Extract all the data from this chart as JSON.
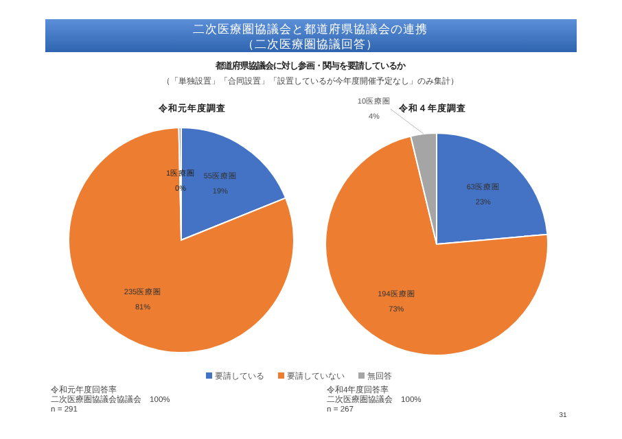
{
  "chart_data": [
    {
      "type": "pie",
      "title": "令和元年度調査",
      "categories": [
        null,
        null,
        null
      ],
      "values": [
        55,
        235,
        1
      ],
      "colors": [
        "#4472c4",
        "#ed7d31",
        "#a5a5a5"
      ],
      "value_labels": [
        "55医療圏\n19%",
        "235医療圏\n81%",
        "1医療圏\n0%"
      ],
      "annotations": [
        "二次医療圏協議会と都道府県協議会の連携",
        "（二次医療圏協議回答）",
        "都道府県協議会に対し参画・関与を要請しているか",
        "（「単独設置」「合同設置」「設置しているが今年度開催予定なし」のみ集計）",
        "令和元年度回答率",
        "二次医療圏協議会協議会　100%",
        "n = 291"
      ]
    },
    {
      "type": "pie",
      "title": "令和４年度調査",
      "categories": [
        "要請している",
        "要請していない",
        "無回答"
      ],
      "values": [
        63,
        194,
        10
      ],
      "colors": [
        "#4472c4",
        "#ed7d31",
        "#a5a5a5"
      ],
      "value_labels": [
        "63医療圏\n23%",
        "194医療圏\n73%",
        "10医療圏\n4%"
      ],
      "legend": "bottom",
      "annotations": [
        "令和4年度回答率",
        "二次医療圏協議会　100%",
        "n = 267",
        "31"
      ]
    }
  ]
}
